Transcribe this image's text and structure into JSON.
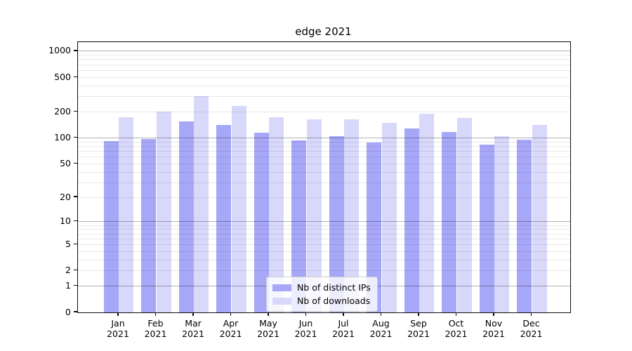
{
  "page_title": "edge 2021",
  "chart_data": {
    "type": "bar",
    "title": "edge 2021",
    "categories": [
      "Jan",
      "Feb",
      "Mar",
      "Apr",
      "May",
      "Jun",
      "Jul",
      "Aug",
      "Sep",
      "Oct",
      "Nov",
      "Dec"
    ],
    "category_year": "2021",
    "series": [
      {
        "name": "Nb of distinct IPs",
        "color": "#a7a7f7",
        "values": [
          92,
          97,
          155,
          140,
          114,
          93,
          105,
          89,
          129,
          117,
          84,
          96
        ]
      },
      {
        "name": "Nb of downloads",
        "color": "#d8d8fa",
        "values": [
          172,
          202,
          305,
          235,
          172,
          164,
          164,
          149,
          190,
          170,
          105,
          142
        ]
      }
    ],
    "yscale": "log1p",
    "ytick_labels": [
      0,
      1,
      2,
      5,
      10,
      20,
      50,
      100,
      200,
      500,
      1000
    ],
    "major_grid_values": [
      1,
      10,
      100,
      1000
    ],
    "minor_grid_values": [
      2,
      3,
      4,
      5,
      6,
      7,
      8,
      9,
      20,
      30,
      40,
      50,
      60,
      70,
      80,
      90,
      200,
      300,
      400,
      500,
      600,
      700,
      800,
      900
    ],
    "ylim": [
      0,
      1270
    ],
    "xlabel": "",
    "ylabel": "",
    "grid": "on",
    "legend_position": "lower-center-inside",
    "colors": {
      "bar_distinct_ips": "#a7a7f7",
      "bar_downloads": "#d8d8fa",
      "major_grid": "#b3b3b3",
      "minor_grid": "#e9e9e9",
      "spine": "#0d0d0d",
      "text": "#000000",
      "background": "#ffffff"
    }
  }
}
